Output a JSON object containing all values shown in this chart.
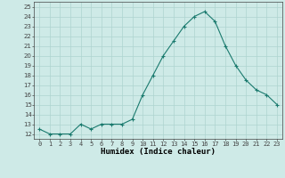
{
  "x": [
    0,
    1,
    2,
    3,
    4,
    5,
    6,
    7,
    8,
    9,
    10,
    11,
    12,
    13,
    14,
    15,
    16,
    17,
    18,
    19,
    20,
    21,
    22,
    23
  ],
  "y": [
    12.5,
    12.0,
    12.0,
    12.0,
    13.0,
    12.5,
    13.0,
    13.0,
    13.0,
    13.5,
    16.0,
    18.0,
    20.0,
    21.5,
    23.0,
    24.0,
    24.5,
    23.5,
    21.0,
    19.0,
    17.5,
    16.5,
    16.0,
    15.0
  ],
  "line_color": "#1a7a6e",
  "marker": "+",
  "marker_size": 3,
  "bg_color": "#ceeae7",
  "grid_color": "#aed4d0",
  "xlabel": "Humidex (Indice chaleur)",
  "xlim": [
    -0.5,
    23.5
  ],
  "ylim": [
    11.5,
    25.5
  ],
  "yticks": [
    12,
    13,
    14,
    15,
    16,
    17,
    18,
    19,
    20,
    21,
    22,
    23,
    24,
    25
  ],
  "xticks": [
    0,
    1,
    2,
    3,
    4,
    5,
    6,
    7,
    8,
    9,
    10,
    11,
    12,
    13,
    14,
    15,
    16,
    17,
    18,
    19,
    20,
    21,
    22,
    23
  ],
  "xtick_labels": [
    "0",
    "1",
    "2",
    "3",
    "4",
    "5",
    "6",
    "7",
    "8",
    "9",
    "10",
    "11",
    "12",
    "13",
    "14",
    "15",
    "16",
    "17",
    "18",
    "19",
    "20",
    "21",
    "22",
    "23"
  ],
  "tick_fontsize": 5.0,
  "xlabel_fontsize": 6.5,
  "axis_color": "#444444",
  "line_width": 0.8,
  "marker_edge_width": 0.8
}
